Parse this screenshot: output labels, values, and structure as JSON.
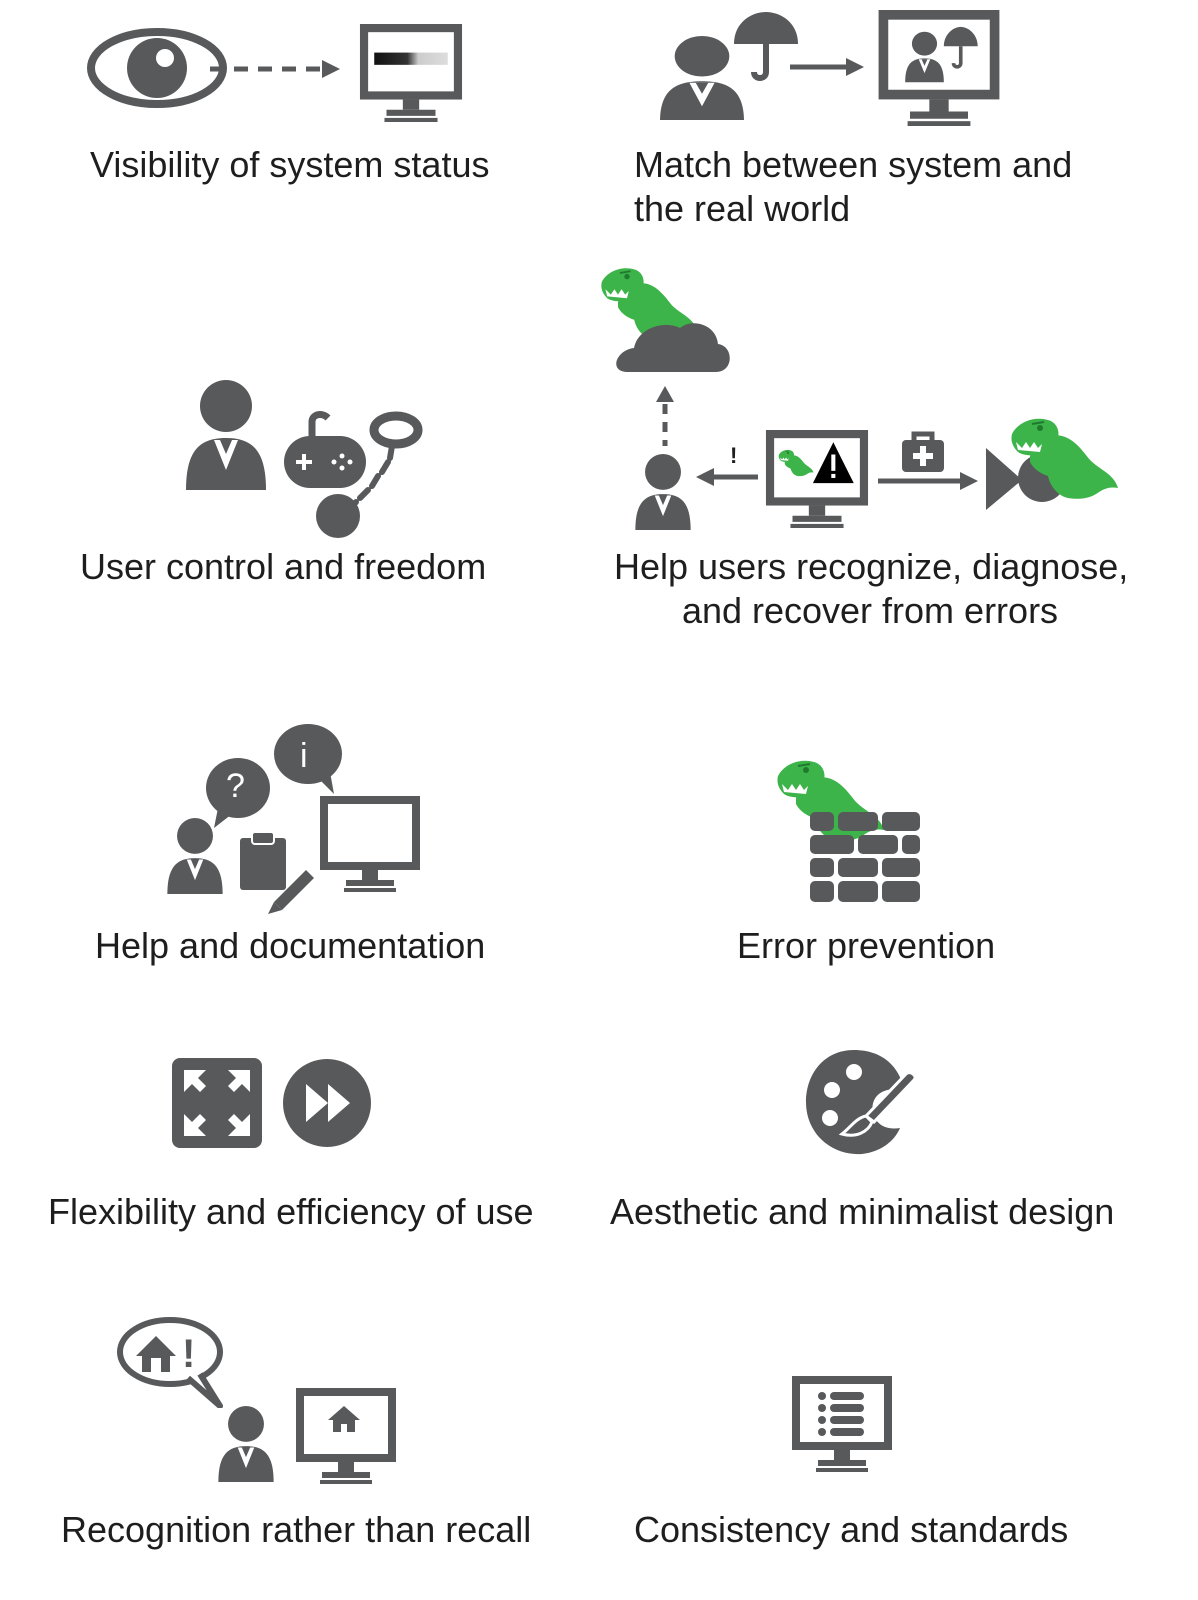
{
  "colors": {
    "icon_gray": "#58595b",
    "dino_green": "#3cb44a",
    "dino_dark": "#1f7a2e",
    "background": "#ffffff"
  },
  "principles": [
    {
      "id": "visibility",
      "label_lines": [
        "Visibility of system status"
      ],
      "icons": [
        "eye-icon",
        "dashed-arrow-icon",
        "monitor-progress-icon"
      ]
    },
    {
      "id": "match",
      "label_lines": [
        "Match between system and",
        "the real world"
      ],
      "icons": [
        "person-umbrella-icon",
        "arrow-icon",
        "monitor-person-umbrella-icon"
      ]
    },
    {
      "id": "control",
      "label_lines": [
        "User control and freedom"
      ],
      "icons": [
        "person-icon",
        "gamepad-icon",
        "ball-and-chain-icon"
      ]
    },
    {
      "id": "errors",
      "label_lines": [
        "Help users recognize, diagnose,",
        "and recover from errors"
      ],
      "icons": [
        "dino-cloud-icon",
        "person-icon",
        "monitor-warning-icon",
        "first-aid-icon",
        "dino-chomp-icon"
      ],
      "alert_mark": "!"
    },
    {
      "id": "help",
      "label_lines": [
        "Help and documentation"
      ],
      "icons": [
        "question-bubble-icon",
        "info-bubble-icon",
        "person-icon",
        "clipboard-icon",
        "pencil-icon",
        "monitor-icon"
      ],
      "question_mark": "?",
      "info_mark": "i"
    },
    {
      "id": "prevention",
      "label_lines": [
        "Error prevention"
      ],
      "icons": [
        "dino-icon",
        "brick-wall-icon"
      ]
    },
    {
      "id": "flexibility",
      "label_lines": [
        "Flexibility and efficiency of use"
      ],
      "icons": [
        "expand-icon",
        "fast-forward-icon"
      ]
    },
    {
      "id": "aesthetic",
      "label_lines": [
        "Aesthetic and minimalist design"
      ],
      "icons": [
        "palette-icon"
      ]
    },
    {
      "id": "recognition",
      "label_lines": [
        "Recognition rather than recall"
      ],
      "icons": [
        "home-bubble-icon",
        "person-icon",
        "monitor-home-icon"
      ],
      "bubble_mark": "!"
    },
    {
      "id": "consistency",
      "label_lines": [
        "Consistency and standards"
      ],
      "icons": [
        "monitor-list-icon"
      ]
    }
  ]
}
